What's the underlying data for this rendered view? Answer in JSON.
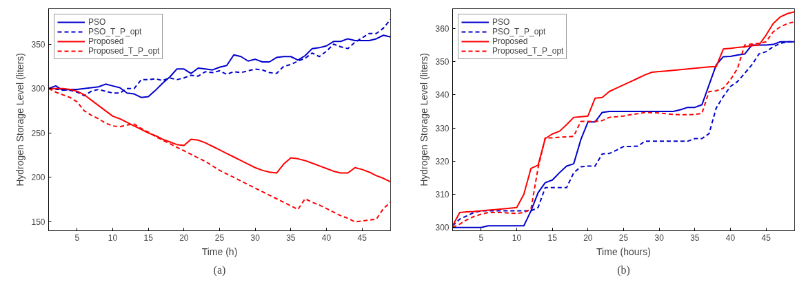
{
  "chart_data": [
    {
      "type": "line",
      "xlabel": "Time (h)",
      "ylabel": "Hydrogen Storage Level (liters)",
      "annotations": [
        "(a)"
      ],
      "xlim": [
        1,
        49
      ],
      "ylim": [
        140,
        390
      ],
      "xticks": [
        5,
        10,
        15,
        20,
        25,
        30,
        35,
        40,
        45
      ],
      "yticks": [
        150,
        200,
        250,
        300,
        350
      ],
      "grid": false,
      "legend": "top left",
      "x": [
        1,
        2,
        3,
        4,
        5,
        6,
        7,
        8,
        9,
        10,
        11,
        12,
        13,
        14,
        15,
        16,
        17,
        18,
        19,
        20,
        21,
        22,
        23,
        24,
        25,
        26,
        27,
        28,
        29,
        30,
        31,
        32,
        33,
        34,
        35,
        36,
        37,
        38,
        39,
        40,
        41,
        42,
        43,
        44,
        45,
        46,
        47,
        48,
        49
      ],
      "series": [
        {
          "name": "PSO",
          "color": "#0000cc",
          "line_style": "solid",
          "values": [
            300,
            303,
            298,
            299,
            299,
            300,
            301,
            302,
            305,
            303,
            301,
            295,
            294,
            290,
            291,
            298,
            306,
            313,
            322,
            322,
            317,
            323,
            322,
            321,
            324,
            326,
            338,
            336,
            331,
            333,
            330,
            330,
            335,
            336,
            336,
            332,
            337,
            345,
            346,
            348,
            353,
            353,
            356,
            354,
            354,
            354,
            356,
            360,
            358
          ]
        },
        {
          "name": "PSO_T_P_opt",
          "color": "#0000cc",
          "line_style": "dashed",
          "values": [
            300,
            299,
            299,
            298,
            296,
            292,
            297,
            299,
            297,
            295,
            295,
            300,
            300,
            310,
            310,
            311,
            309,
            312,
            310,
            312,
            315,
            314,
            319,
            318,
            320,
            316,
            319,
            318,
            320,
            322,
            321,
            318,
            317,
            325,
            327,
            331,
            334,
            340,
            336,
            342,
            350,
            347,
            345,
            352,
            357,
            362,
            362,
            368,
            378
          ]
        },
        {
          "name": "Proposed",
          "color": "#ff0000",
          "line_style": "solid",
          "values": [
            300,
            300,
            300,
            299,
            297,
            293,
            287,
            281,
            275,
            269,
            266,
            262,
            258,
            254,
            250,
            247,
            243,
            240,
            237,
            236,
            243,
            242,
            239,
            235,
            231,
            227,
            223,
            219,
            215,
            211,
            208,
            206,
            205,
            215,
            222,
            221,
            219,
            216,
            213,
            210,
            207,
            205,
            205,
            211,
            209,
            206,
            202,
            199,
            195
          ]
        },
        {
          "name": "Proposed_T_P_opt",
          "color": "#ff0000",
          "line_style": "dashed",
          "values": [
            300,
            296,
            293,
            290,
            285,
            275,
            270,
            266,
            261,
            258,
            257,
            259,
            260,
            255,
            251,
            246,
            242,
            238,
            234,
            230,
            226,
            222,
            218,
            213,
            208,
            204,
            200,
            196,
            192,
            188,
            184,
            180,
            176,
            172,
            168,
            164,
            176,
            172,
            169,
            165,
            161,
            157,
            154,
            150,
            151,
            152,
            153,
            165,
            172
          ]
        }
      ]
    },
    {
      "type": "line",
      "xlabel": "Time (hours)",
      "ylabel": "Hydrogen Storage Level (liters)",
      "annotations": [
        "(b)"
      ],
      "xlim": [
        1,
        49
      ],
      "ylim": [
        299,
        366
      ],
      "xticks": [
        5,
        10,
        15,
        20,
        25,
        30,
        35,
        40,
        45
      ],
      "yticks": [
        300,
        310,
        320,
        330,
        340,
        350,
        360
      ],
      "grid": false,
      "legend": "top left",
      "x": [
        1,
        2,
        3,
        4,
        5,
        6,
        7,
        8,
        9,
        10,
        11,
        12,
        13,
        14,
        15,
        16,
        17,
        18,
        19,
        20,
        21,
        22,
        23,
        24,
        25,
        26,
        27,
        28,
        29,
        30,
        31,
        32,
        33,
        34,
        35,
        36,
        37,
        38,
        39,
        40,
        41,
        42,
        43,
        44,
        45,
        46,
        47,
        48,
        49
      ],
      "series": [
        {
          "name": "PSO",
          "color": "#0000cc",
          "line_style": "solid",
          "values": [
            300,
            300,
            300,
            300,
            300,
            300.5,
            300.5,
            300.5,
            300.5,
            300.5,
            300.5,
            305,
            310.5,
            313.5,
            314.3,
            316.5,
            318.5,
            319.2,
            326.5,
            331.8,
            331.8,
            334.7,
            335,
            335,
            335,
            335,
            335,
            335,
            335,
            335,
            335,
            335,
            335.5,
            336.2,
            336.2,
            337,
            343,
            349,
            351.5,
            351.6,
            352,
            352.3,
            355,
            355,
            355,
            355.2,
            356,
            356,
            356
          ]
        },
        {
          "name": "PSO_T_P_opt",
          "color": "#0000cc",
          "line_style": "dashed",
          "values": [
            300.5,
            302.5,
            303.5,
            304.5,
            305,
            305,
            305,
            305,
            305,
            305,
            305,
            305,
            306,
            312,
            312,
            312,
            312,
            316.5,
            318.3,
            318.5,
            318.5,
            322.2,
            322.3,
            323.3,
            324.4,
            324.4,
            324.5,
            326,
            326,
            326,
            326,
            326,
            326,
            326,
            326.8,
            326.8,
            328.3,
            336,
            339.5,
            342.5,
            344,
            346.5,
            349,
            352.3,
            353,
            354.5,
            355.5,
            356,
            356
          ]
        },
        {
          "name": "Proposed",
          "color": "#ff0000",
          "line_style": "solid",
          "values": [
            300.5,
            304.5,
            304.7,
            304.8,
            305,
            305.2,
            305.4,
            305.6,
            305.8,
            306,
            310,
            317.8,
            318.8,
            326.8,
            328.2,
            329,
            331,
            333.2,
            333.4,
            333.6,
            339,
            339.2,
            341,
            342,
            343,
            344,
            345,
            346,
            346.8,
            347,
            347.2,
            347.4,
            347.6,
            347.8,
            348,
            348.2,
            348.4,
            348.5,
            353.8,
            354,
            354.3,
            354.5,
            354.8,
            355,
            358,
            361.5,
            363.5,
            364.5,
            365
          ]
        },
        {
          "name": "Proposed_T_P_opt",
          "color": "#ff0000",
          "line_style": "dashed",
          "values": [
            300,
            301,
            302.3,
            303.3,
            304,
            304.5,
            304.5,
            304.5,
            304.3,
            304.2,
            304.5,
            305.5,
            318,
            327,
            327,
            327.2,
            327.3,
            327.5,
            332,
            332,
            332,
            332.2,
            333.2,
            333.4,
            333.6,
            334,
            334.3,
            334.7,
            334.6,
            334.5,
            334.3,
            334.1,
            334,
            334,
            334.1,
            334.4,
            341,
            341.2,
            342,
            344.5,
            348,
            355,
            355.3,
            355.5,
            356,
            359,
            360.5,
            361.5,
            362
          ]
        }
      ]
    }
  ]
}
